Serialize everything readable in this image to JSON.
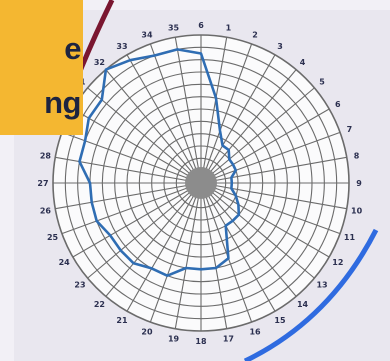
{
  "card": {
    "line1": "e",
    "line2": "ng"
  },
  "colors": {
    "card": "#f4b731",
    "series": "#2f6db3",
    "arc_dark": "#7a1630",
    "arc_blue": "#2f6be0",
    "grid": "#6b6b6b"
  },
  "chart_data": {
    "type": "radar",
    "radial_rings": 12,
    "grid": true,
    "center_dot": true,
    "angular_labels": [
      "6",
      "1",
      "2",
      "3",
      "4",
      "5",
      "6",
      "7",
      "8",
      "9",
      "10",
      "11",
      "12",
      "13",
      "14",
      "15",
      "16",
      "17",
      "18",
      "19",
      "20",
      "21",
      "22",
      "23",
      "24",
      "25",
      "26",
      "27",
      "28",
      "29",
      "30",
      "31",
      "32",
      "33",
      "34",
      "35"
    ],
    "series": [
      {
        "values": [
          10.5,
          7.0,
          4.5,
          3.5,
          3.5,
          3.0,
          3.0,
          3.0,
          2.5,
          2.5,
          2.5,
          3.0,
          3.5,
          4.0,
          4.0,
          4.0,
          6.5,
          7.0,
          7.0,
          7.0,
          8.0,
          8.0,
          8.5,
          8.5,
          8.5,
          9.0,
          9.0,
          9.0,
          10.0,
          10.0,
          10.5,
          10.5,
          12.0,
          11.5,
          11.0,
          11.0
        ]
      }
    ]
  }
}
